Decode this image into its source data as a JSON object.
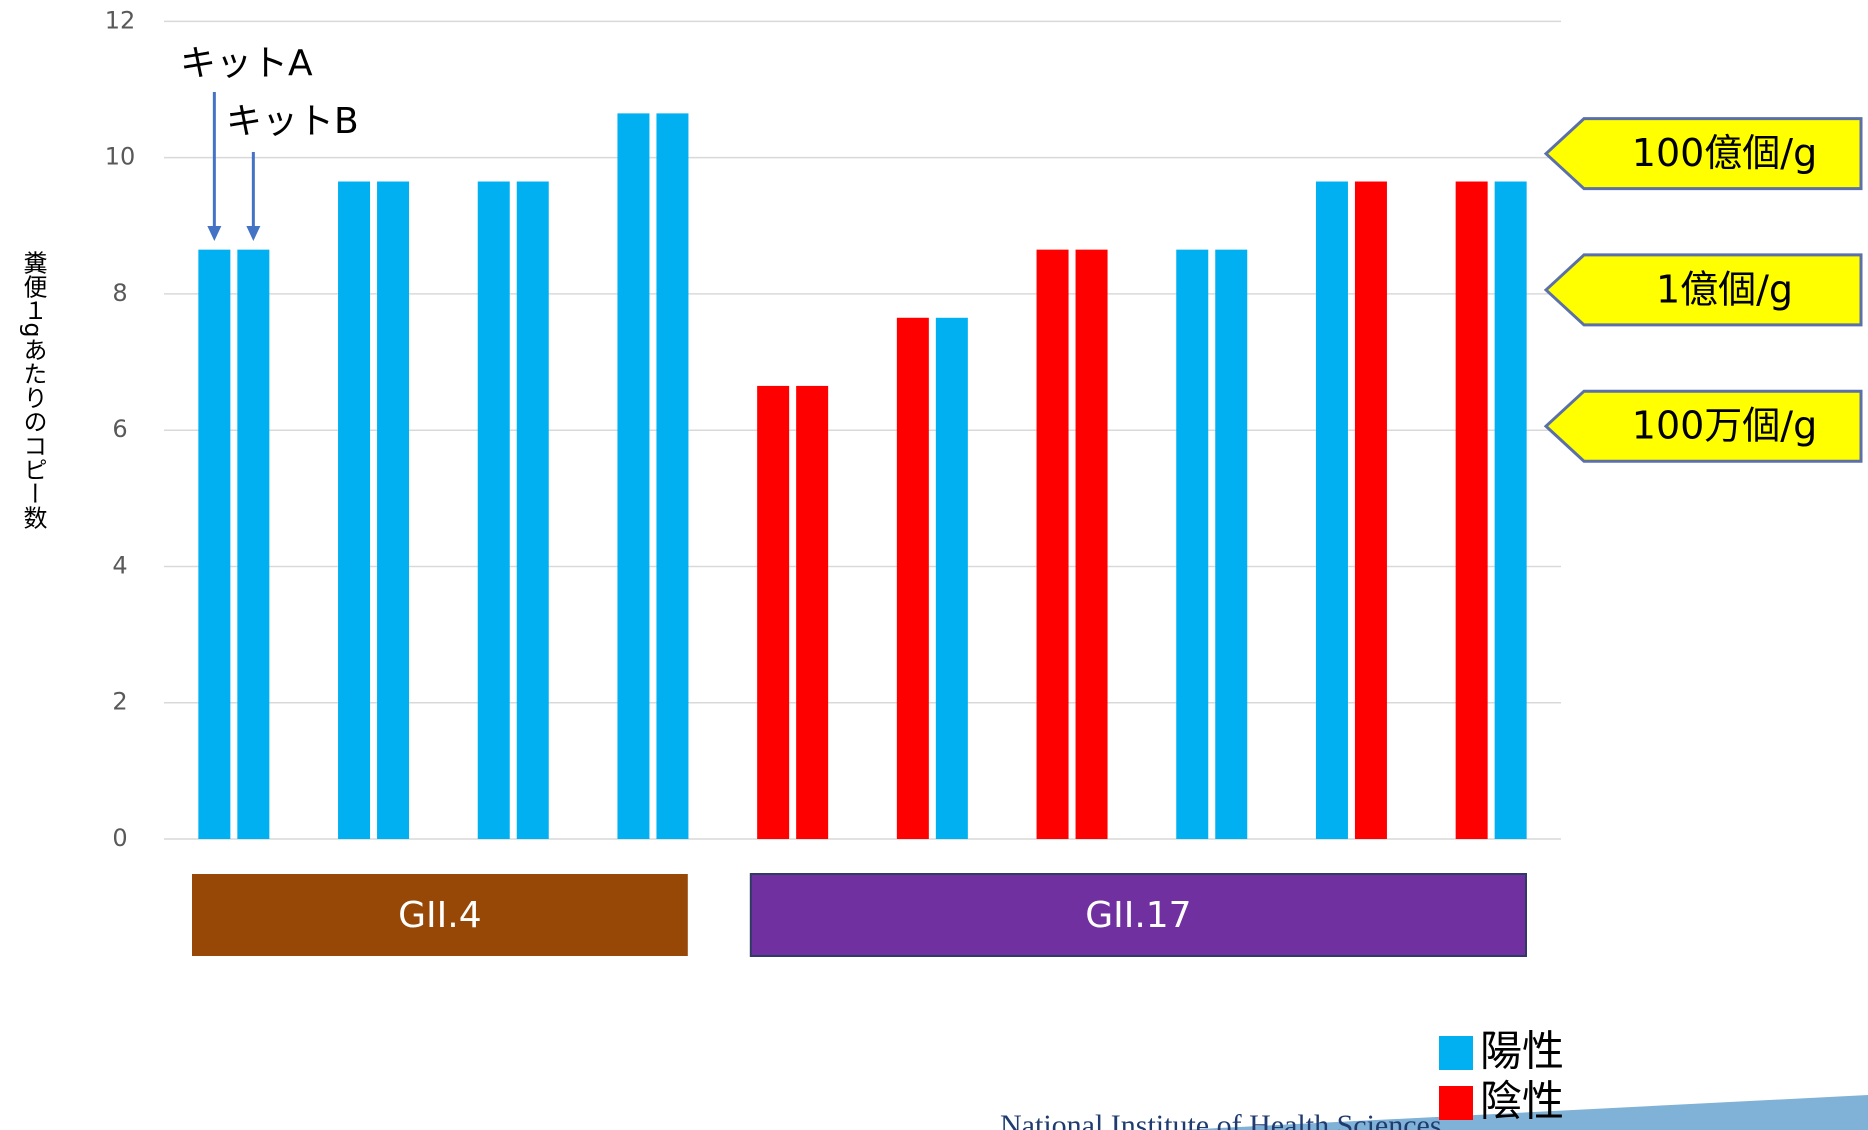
{
  "chart_data": {
    "type": "bar",
    "y_label": "糞便１gあたりのコピー数",
    "categories": [
      null,
      null,
      null,
      null,
      null,
      null,
      null,
      null,
      null,
      null
    ],
    "series": [
      {
        "name": "キットA",
        "values": [
          8.65,
          9.65,
          9.65,
          10.65,
          6.65,
          7.65,
          8.65,
          8.65,
          9.65,
          9.65
        ],
        "colors": [
          "#00b0f0",
          "#00b0f0",
          "#00b0f0",
          "#00b0f0",
          "#ff0000",
          "#ff0000",
          "#ff0000",
          "#00b0f0",
          "#00b0f0",
          "#ff0000"
        ]
      },
      {
        "name": "キットB",
        "values": [
          8.65,
          9.65,
          9.65,
          10.65,
          6.65,
          7.65,
          8.65,
          8.65,
          9.65,
          9.65
        ],
        "colors": [
          "#00b0f0",
          "#00b0f0",
          "#00b0f0",
          "#00b0f0",
          "#ff0000",
          "#00b0f0",
          "#ff0000",
          "#00b0f0",
          "#ff0000",
          "#00b0f0"
        ]
      }
    ],
    "ylim": [
      0,
      12
    ],
    "yticks": [
      0,
      2,
      4,
      6,
      8,
      10,
      12
    ],
    "grid": true,
    "groups": [
      {
        "label": "GII.4",
        "color": "#974706"
      },
      {
        "label": "GII.17",
        "color": "#7030a0"
      }
    ],
    "callouts": [
      {
        "text": "100億個/g",
        "y": 10
      },
      {
        "text": "1億個/g",
        "y": 8
      },
      {
        "text": "100万個/g",
        "y": 6
      }
    ],
    "legend": [
      {
        "name": "陽性",
        "color": "#00b0f0"
      },
      {
        "name": "陰性",
        "color": "#ff0000"
      }
    ],
    "footer": "National Institute of Health Sciences"
  }
}
